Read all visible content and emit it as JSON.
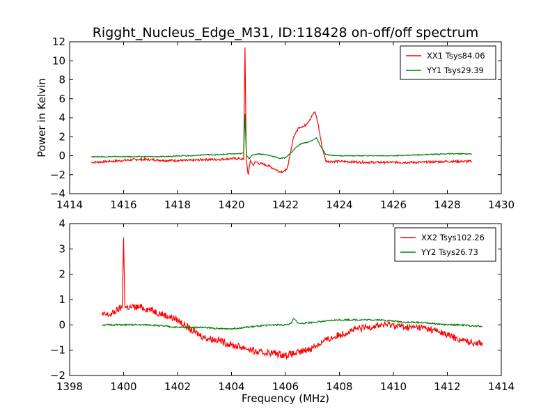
{
  "title": "Rigght_Nucleus_Edge_M31, ID:118428 on-off/off spectrum",
  "chart_data": [
    {
      "type": "line",
      "ylabel": "Power in Kelvin",
      "xlabel": "",
      "xlim": [
        1414,
        1430
      ],
      "ylim": [
        -4,
        12
      ],
      "xticks": [
        1414,
        1416,
        1418,
        1420,
        1422,
        1424,
        1426,
        1428,
        1430
      ],
      "yticks": [
        -4,
        -2,
        0,
        2,
        4,
        6,
        8,
        10,
        12
      ],
      "legend_position": "top-right",
      "series": [
        {
          "name": "XX1 Tsys84.06",
          "color": "#ff0000",
          "x": [
            1414.8,
            1415.5,
            1416.0,
            1416.5,
            1417.0,
            1417.5,
            1418.0,
            1418.5,
            1419.0,
            1419.5,
            1420.0,
            1420.3,
            1420.45,
            1420.5,
            1420.55,
            1420.62,
            1420.7,
            1420.8,
            1420.9,
            1421.0,
            1421.2,
            1421.4,
            1421.6,
            1421.8,
            1422.0,
            1422.1,
            1422.2,
            1422.3,
            1422.5,
            1422.7,
            1422.9,
            1423.0,
            1423.1,
            1423.2,
            1423.35,
            1423.5,
            1424.0,
            1425.0,
            1426.0,
            1427.0,
            1428.0,
            1428.9
          ],
          "values": [
            -0.7,
            -0.6,
            -0.5,
            -0.4,
            -0.4,
            -0.5,
            -0.5,
            -0.5,
            -0.4,
            -0.4,
            -0.3,
            -0.3,
            -0.4,
            11.4,
            -0.5,
            -2.0,
            -0.5,
            -1.0,
            -0.6,
            -0.8,
            -0.9,
            -1.1,
            -1.4,
            -1.7,
            -1.6,
            -1.0,
            0.5,
            2.0,
            3.0,
            3.1,
            3.8,
            4.3,
            4.6,
            3.5,
            1.0,
            -0.6,
            -0.6,
            -0.7,
            -0.7,
            -0.7,
            -0.6,
            -0.6
          ]
        },
        {
          "name": "YY1 Tsys29.39",
          "color": "#008000",
          "x": [
            1414.8,
            1415.5,
            1416.0,
            1416.5,
            1417.0,
            1417.5,
            1418.0,
            1418.5,
            1419.0,
            1419.5,
            1420.0,
            1420.3,
            1420.45,
            1420.5,
            1420.55,
            1420.65,
            1420.8,
            1421.0,
            1421.3,
            1421.6,
            1421.8,
            1422.0,
            1422.2,
            1422.4,
            1422.6,
            1422.8,
            1423.0,
            1423.15,
            1423.3,
            1423.5,
            1424.0,
            1425.0,
            1426.0,
            1427.0,
            1428.0,
            1428.9
          ],
          "values": [
            -0.1,
            -0.1,
            -0.1,
            -0.1,
            -0.1,
            -0.1,
            0.0,
            0.0,
            0.1,
            0.1,
            0.2,
            0.2,
            0.3,
            4.4,
            0.1,
            -0.3,
            0.1,
            0.2,
            0.1,
            -0.1,
            -0.3,
            -0.2,
            0.3,
            0.9,
            1.3,
            1.4,
            1.6,
            1.9,
            1.0,
            0.1,
            0.0,
            0.0,
            0.0,
            0.1,
            0.2,
            0.2
          ]
        }
      ]
    },
    {
      "type": "line",
      "ylabel": "",
      "xlabel": "Frequency (MHz)",
      "xlim": [
        1398,
        1414
      ],
      "ylim": [
        -2,
        4
      ],
      "xticks": [
        1398,
        1400,
        1402,
        1404,
        1406,
        1408,
        1410,
        1412,
        1414
      ],
      "yticks": [
        -2,
        -1,
        0,
        1,
        2,
        3,
        4
      ],
      "legend_position": "top-right",
      "series": [
        {
          "name": "XX2 Tsys102.26",
          "color": "#ff0000",
          "x": [
            1399.2,
            1399.5,
            1399.8,
            1399.95,
            1400.0,
            1400.05,
            1400.3,
            1400.6,
            1401.0,
            1401.5,
            1402.0,
            1402.5,
            1403.0,
            1403.5,
            1404.0,
            1404.5,
            1405.0,
            1405.5,
            1406.0,
            1406.5,
            1407.0,
            1407.5,
            1408.0,
            1408.5,
            1409.0,
            1409.5,
            1410.0,
            1410.5,
            1411.0,
            1411.5,
            1412.0,
            1412.5,
            1413.0,
            1413.3
          ],
          "values": [
            0.4,
            0.4,
            0.6,
            0.7,
            3.45,
            0.7,
            0.7,
            0.7,
            0.6,
            0.4,
            0.2,
            -0.2,
            -0.5,
            -0.6,
            -0.8,
            -0.9,
            -1.1,
            -1.1,
            -1.2,
            -1.1,
            -0.9,
            -0.6,
            -0.4,
            -0.2,
            -0.1,
            0.0,
            0.0,
            -0.1,
            -0.1,
            -0.2,
            -0.4,
            -0.6,
            -0.7,
            -0.7
          ]
        },
        {
          "name": "YY2 Tsys26.73",
          "color": "#008000",
          "x": [
            1399.2,
            1400.0,
            1400.5,
            1401.0,
            1401.5,
            1402.0,
            1402.5,
            1403.0,
            1403.5,
            1404.0,
            1404.5,
            1405.0,
            1405.5,
            1406.0,
            1406.2,
            1406.3,
            1406.5,
            1407.0,
            1407.5,
            1408.0,
            1408.5,
            1409.0,
            1409.5,
            1410.0,
            1410.5,
            1411.0,
            1411.5,
            1412.0,
            1412.5,
            1413.0,
            1413.3
          ],
          "values": [
            0.0,
            0.0,
            0.0,
            0.0,
            -0.05,
            -0.1,
            -0.1,
            -0.1,
            -0.15,
            -0.15,
            -0.1,
            -0.05,
            0.0,
            0.0,
            0.05,
            0.25,
            0.05,
            0.1,
            0.15,
            0.2,
            0.2,
            0.2,
            0.2,
            0.15,
            0.1,
            0.1,
            0.05,
            0.0,
            0.0,
            -0.05,
            -0.05
          ]
        }
      ]
    }
  ]
}
